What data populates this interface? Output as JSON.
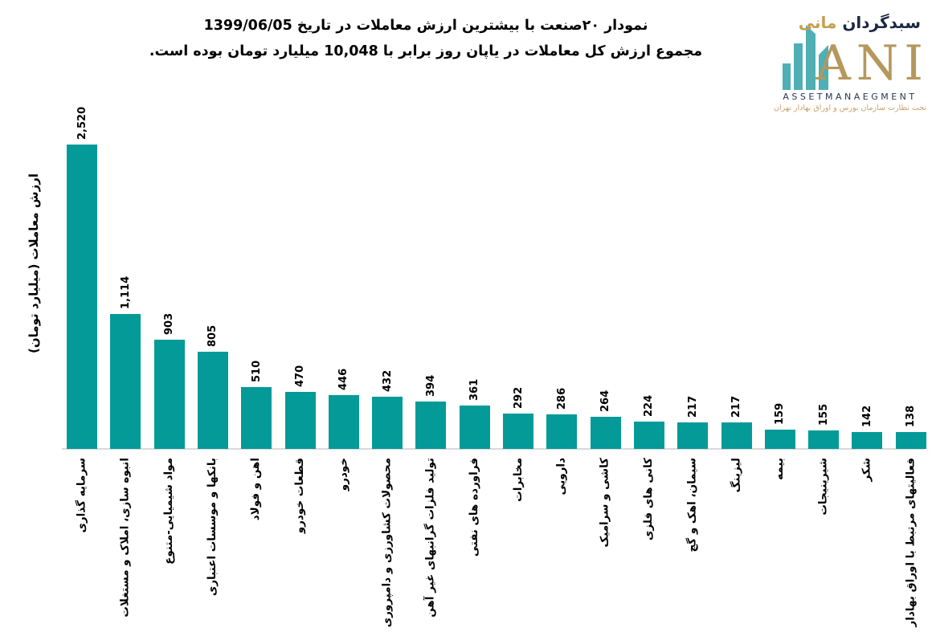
{
  "header": {
    "title_line1": "نمودار  ۲۰صنعت با بیشترین ارزش معاملات در تاریخ 1399/06/05",
    "title_line2": "مجموع ارزش  کل معاملات در یاپان روز برابر با 10,048 میلیارد تومان بوده است."
  },
  "logo": {
    "brand_fa_primary": "سبدگردان",
    "brand_fa_accent": "مانی",
    "brand_en": "ANI",
    "subtitle": "ASSETMANAEGMENT",
    "tagline": "تحت نظارت سازمان بورس و اوراق بهادار تهران",
    "colors": {
      "bars_teal": "#4fafb4",
      "gold": "#b5985c",
      "navy": "#1c2743",
      "tagline_tan": "#c9a06a"
    }
  },
  "chart_data": {
    "type": "bar",
    "title": "نمودار  ۲۰صنعت با بیشترین ارزش معاملات در تاریخ 1399/06/05",
    "subtitle": "مجموع ارزش  کل معاملات در یاپان روز برابر با 10,048 میلیارد تومان بوده است.",
    "ylabel": "ارزش معاملات (میلیارد تومان)",
    "xlabel": "",
    "total_value_label": "10,048",
    "date_label": "1399/06/05",
    "categories": [
      "سرمایه گذاری",
      "انبوه سازی، املاک و مستغلات",
      "مواد شیمیایی-متنوع",
      "بانکها و موسسات اعتباری",
      "اهن و فولاد",
      "قطعات خودرو",
      "خودرو",
      "محصولات کشاورزی و دامپروری",
      "تولید فلزات گرانبهای غیر آهن",
      "فراورده های نفتی",
      "مخابرات",
      "دارویی",
      "کاشی و سرامیک",
      "کانی های فلزی",
      "سیمان، اهک و گچ",
      "لیزینگ",
      "بیمه",
      "شیرینیجات",
      "شکر",
      "فعالیتهای مرتبط با اوراق بهادار"
    ],
    "values": [
      2520,
      1114,
      903,
      805,
      510,
      470,
      446,
      432,
      394,
      361,
      292,
      286,
      264,
      224,
      217,
      217,
      159,
      155,
      142,
      138
    ],
    "ylim": [
      0,
      2520
    ],
    "grid": false,
    "legend": "none",
    "bar_color": "#049a98",
    "axis_line_color": "#d9d9d9",
    "value_labels": "rotated-90",
    "category_labels": "rotated-90"
  }
}
